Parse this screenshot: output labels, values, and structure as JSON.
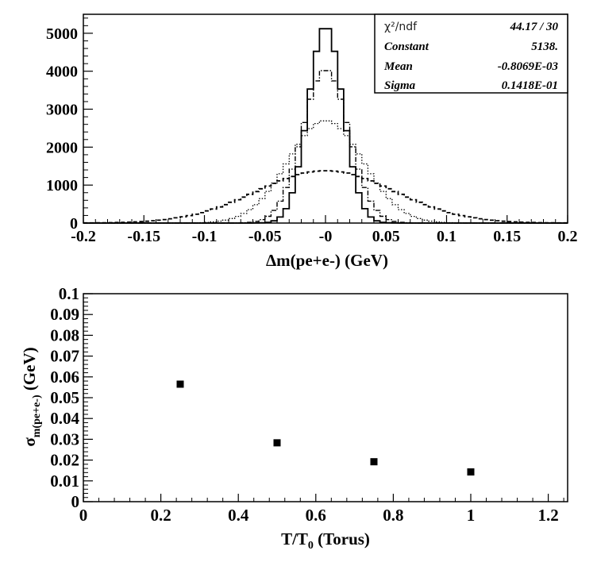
{
  "chart_data": [
    {
      "type": "line",
      "xlabel": "Δm(pe+e-) (GeV)",
      "ylabel": "",
      "xlim": [
        -0.2,
        0.2
      ],
      "ylim": [
        0,
        5500
      ],
      "x_ticks": [
        "-0.2",
        "-0.15",
        "-0.1",
        "-0.05",
        "-0",
        "0.05",
        "0.1",
        "0.15",
        "0.2"
      ],
      "y_ticks": [
        "0",
        "1000",
        "2000",
        "3000",
        "4000",
        "5000"
      ],
      "series": [
        {
          "style": "solid",
          "peak": 5200,
          "sigma": 0.0142
        },
        {
          "style": "dashdot",
          "peak": 4050,
          "sigma": 0.019
        },
        {
          "style": "dotted",
          "peak": 2700,
          "sigma": 0.031
        },
        {
          "style": "dashed",
          "peak": 1380,
          "sigma": 0.057
        }
      ],
      "stats_box": {
        "rows": [
          {
            "label": "χ²/ndf",
            "value": "44.17   /   30"
          },
          {
            "label": "Constant",
            "value": "5138."
          },
          {
            "label": "Mean",
            "value": "-0.8069E-03"
          },
          {
            "label": "Sigma",
            "value": "0.1418E-01"
          }
        ]
      }
    },
    {
      "type": "scatter",
      "xlabel": "T/T0 (Torus)",
      "ylabel": "σm(pe+e-) (GeV)",
      "xlim": [
        0,
        1.25
      ],
      "ylim": [
        0,
        0.1
      ],
      "x_ticks": [
        "0",
        "0.2",
        "0.4",
        "0.6",
        "0.8",
        "1",
        "1.2"
      ],
      "y_ticks": [
        "0",
        "0.01",
        "0.02",
        "0.03",
        "0.04",
        "0.05",
        "0.06",
        "0.07",
        "0.08",
        "0.09",
        "0.1"
      ],
      "x": [
        0.25,
        0.5,
        0.75,
        1.0
      ],
      "y": [
        0.0565,
        0.0283,
        0.0192,
        0.0143
      ]
    }
  ]
}
